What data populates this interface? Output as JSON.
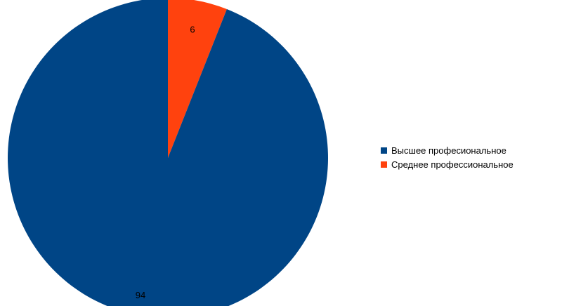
{
  "chart_data": {
    "type": "pie",
    "categories": [
      "Высшее професиональное",
      "Среднее профессиональное"
    ],
    "values": [
      94,
      6
    ],
    "colors": [
      "#004586",
      "#ff420e"
    ],
    "data_labels": [
      "94",
      "6"
    ],
    "legend_position": "right"
  }
}
